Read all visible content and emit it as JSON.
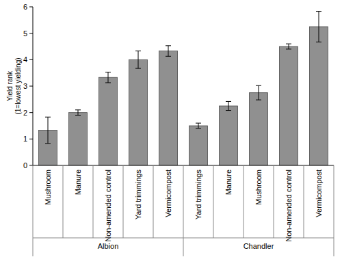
{
  "chart_data": {
    "type": "bar",
    "y_label": "Yield rank\n(1=lowest yielding)",
    "categories": [
      "Mushroom",
      "Manure",
      "Non-amended control",
      "Yard trimmings",
      "Vermicompost",
      "Yard trimmings",
      "Manure",
      "Mushroom",
      "Non-amended control",
      "Vermicompost"
    ],
    "groups": [
      "Albion",
      "Albion",
      "Albion",
      "Albion",
      "Albion",
      "Chandler",
      "Chandler",
      "Chandler",
      "Chandler",
      "Chandler"
    ],
    "values": [
      1.33,
      2.0,
      3.33,
      4.0,
      4.33,
      1.5,
      2.25,
      2.75,
      4.5,
      5.25
    ],
    "errors": [
      0.5,
      0.1,
      0.2,
      0.33,
      0.2,
      0.1,
      0.17,
      0.27,
      0.1,
      0.58
    ],
    "color": "#909090",
    "ylim": [
      0,
      6
    ],
    "yticks": [
      0,
      1,
      2,
      3,
      4,
      5,
      6
    ],
    "grid": false
  }
}
